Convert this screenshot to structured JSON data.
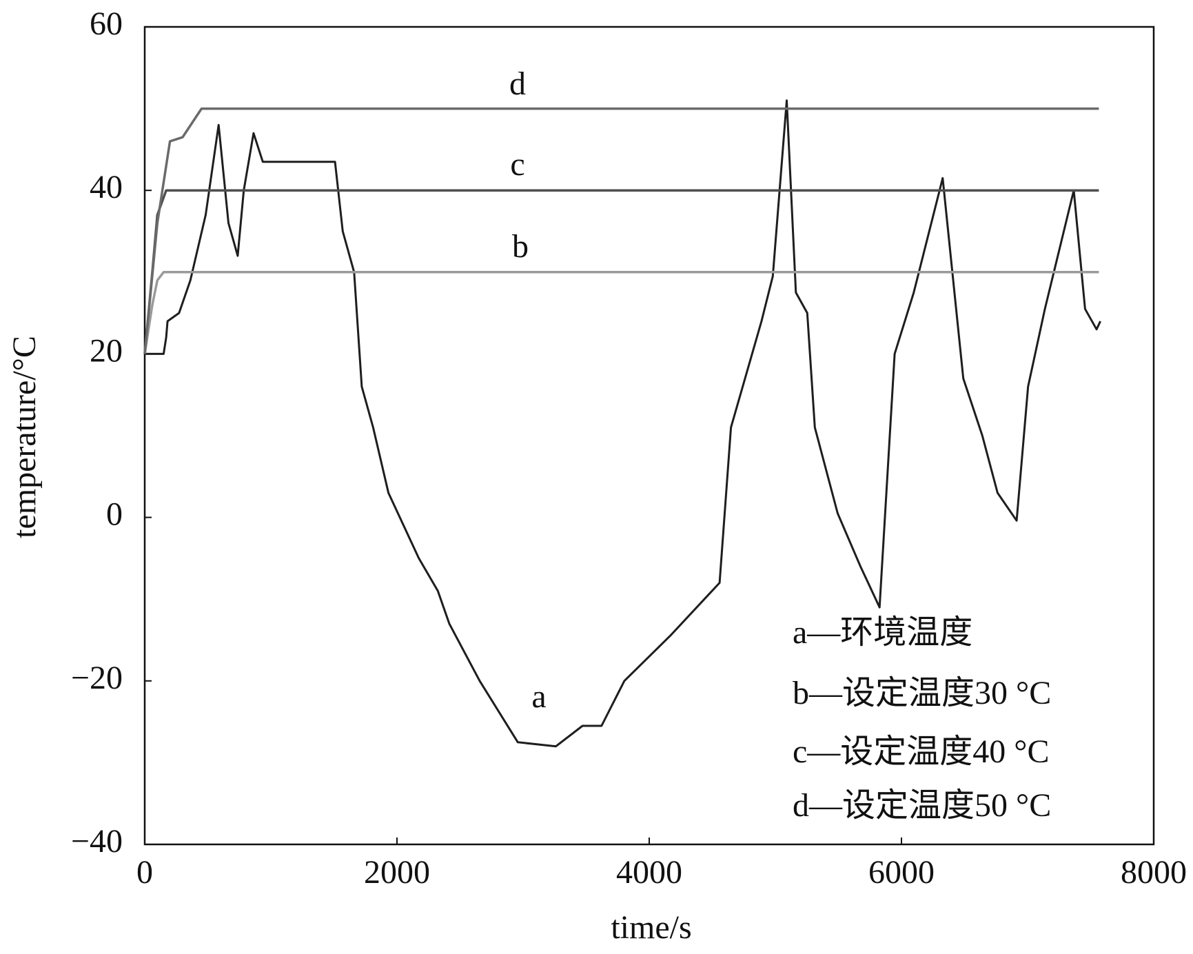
{
  "chart_data": {
    "type": "line",
    "x_label": "time/s",
    "y_label": "temperature/°C",
    "xlim": [
      0,
      8000
    ],
    "xticks": [
      0,
      2000,
      4000,
      6000,
      8000
    ],
    "ylim": [
      -40,
      60
    ],
    "yticks": [
      {
        "value": -40,
        "label": "−40"
      },
      {
        "value": -20,
        "label": "−20"
      },
      0,
      20,
      40,
      60
    ],
    "grid": false,
    "legend": "lower right",
    "annotations": [
      "a",
      "b",
      "c",
      "d"
    ],
    "series": [
      {
        "name": "a—环境温度",
        "color": "#1e1e1e",
        "x": [
          0,
          100,
          150,
          170,
          181,
          272,
          362,
          483,
          586,
          664,
          737,
          785,
          863,
          936,
          1509,
          1570,
          1660,
          1721,
          1811,
          1932,
          2173,
          2324,
          2415,
          2656,
          2958,
          3260,
          3471,
          3622,
          3803,
          4165,
          4558,
          4648,
          4890,
          4980,
          5090,
          5163,
          5253,
          5313,
          5494,
          5675,
          5826,
          5946,
          6097,
          6327,
          6430,
          6490,
          6641,
          6762,
          6913,
          7004,
          7137,
          7366,
          7456,
          7547,
          7577
        ],
        "values": [
          20,
          20,
          20,
          22,
          24,
          25,
          29,
          37,
          48,
          36,
          32,
          40,
          47,
          43.5,
          43.5,
          35,
          30,
          16,
          11,
          3,
          -5,
          -9,
          -13,
          -20,
          -27.5,
          -28,
          -25.5,
          -25.5,
          -20,
          -14.5,
          -8,
          11,
          24,
          29.5,
          51,
          27.5,
          25,
          11,
          0.5,
          -6,
          -11,
          20,
          27.5,
          41.5,
          26,
          17,
          10,
          3,
          -0.4,
          16,
          25.5,
          40,
          25.5,
          23,
          24
        ]
      },
      {
        "name": "b—设定温度30 °C",
        "color": "#9a9a9a",
        "x": [
          0,
          60,
          100,
          150,
          7565
        ],
        "values": [
          20,
          26,
          29,
          30,
          30
        ]
      },
      {
        "name": "c—设定温度40 °C",
        "color": "#4e4e4e",
        "x": [
          0,
          60,
          100,
          170,
          7565
        ],
        "values": [
          20,
          30,
          37,
          40,
          40
        ]
      },
      {
        "name": "d—设定温度50 °C",
        "color": "#6a6a6a",
        "x": [
          0,
          100,
          200,
          300,
          450,
          7565
        ],
        "values": [
          20,
          36,
          46,
          46.5,
          50,
          50
        ]
      }
    ]
  }
}
